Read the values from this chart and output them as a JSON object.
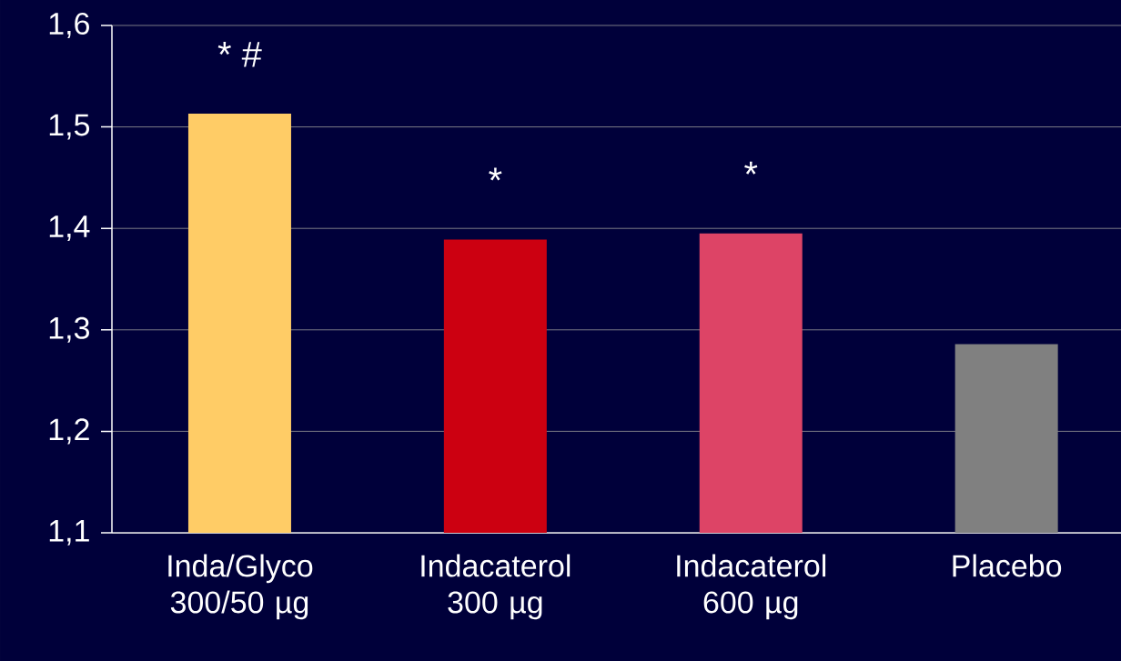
{
  "chart_data": {
    "type": "bar",
    "categories": [
      "Inda/Glyco 300/50 µg",
      "Indacaterol 300 µg",
      "Indacaterol 600  µg",
      "Placebo"
    ],
    "values": [
      1.513,
      1.389,
      1.395,
      1.286
    ],
    "colors": [
      "#ffcc66",
      "#cc0011",
      "#dd4466",
      "#808080"
    ],
    "ylim": [
      1.1,
      1.6
    ],
    "yticks": [
      {
        "value": 1.1,
        "label": "1,1"
      },
      {
        "value": 1.2,
        "label": "1,2"
      },
      {
        "value": 1.3,
        "label": "1,3"
      },
      {
        "value": 1.4,
        "label": "1,4"
      },
      {
        "value": 1.5,
        "label": "1,5"
      },
      {
        "value": 1.6,
        "label": "1,6"
      }
    ],
    "grid": "y",
    "annotations": [
      "* #",
      "*",
      "*"
    ]
  }
}
